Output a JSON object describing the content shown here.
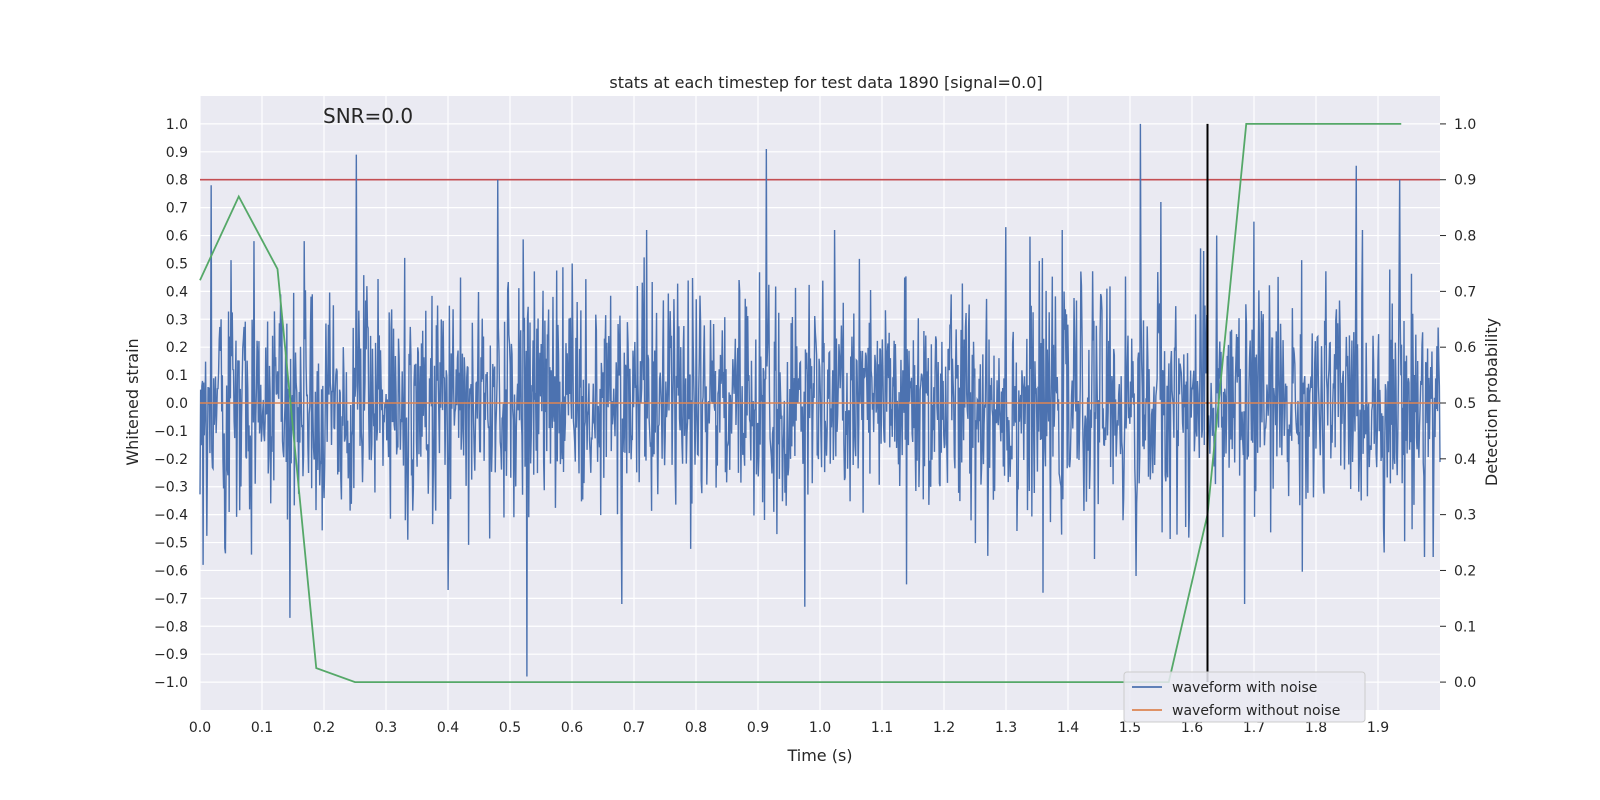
{
  "chart_data": {
    "type": "line",
    "title": "stats at each timestep for test data 1890 [signal=0.0]",
    "annotation": "SNR=0.0",
    "xlabel": "Time (s)",
    "ylabel": "Whitened strain",
    "y2label": "Detection probability",
    "xlim": [
      0.0,
      2.0
    ],
    "ylim": [
      -1.1,
      1.1
    ],
    "y2lim": [
      -0.05,
      1.05
    ],
    "x_ticks": [
      0.0,
      0.1,
      0.2,
      0.3,
      0.4,
      0.5,
      0.6,
      0.7,
      0.8,
      0.9,
      1.0,
      1.1,
      1.2,
      1.3,
      1.4,
      1.5,
      1.6,
      1.7,
      1.8,
      1.9
    ],
    "x_tick_labels": [
      "0.0",
      "0.1",
      "0.2",
      "0.3",
      "0.4",
      "0.5",
      "0.6",
      "0.7",
      "0.8",
      "0.9",
      "1.0",
      "1.1",
      "1.2",
      "1.3",
      "1.4",
      "1.5",
      "1.6",
      "1.7",
      "1.8",
      "1.9"
    ],
    "y_ticks": [
      -1.0,
      -0.9,
      -0.8,
      -0.7,
      -0.6,
      -0.5,
      -0.4,
      -0.3,
      -0.2,
      -0.1,
      0.0,
      0.1,
      0.2,
      0.3,
      0.4,
      0.5,
      0.6,
      0.7,
      0.8,
      0.9,
      1.0
    ],
    "y_tick_labels": [
      "−1.0",
      "−0.9",
      "−0.8",
      "−0.7",
      "−0.6",
      "−0.5",
      "−0.4",
      "−0.3",
      "−0.2",
      "−0.1",
      "0.0",
      "0.1",
      "0.2",
      "0.3",
      "0.4",
      "0.5",
      "0.6",
      "0.7",
      "0.8",
      "0.9",
      "1.0"
    ],
    "y2_ticks": [
      0.0,
      0.1,
      0.2,
      0.3,
      0.4,
      0.5,
      0.6,
      0.7,
      0.8,
      0.9,
      1.0
    ],
    "y2_tick_labels": [
      "0.0",
      "0.1",
      "0.2",
      "0.3",
      "0.4",
      "0.5",
      "0.6",
      "0.7",
      "0.8",
      "0.9",
      "1.0"
    ],
    "grid": true,
    "legend_position": "lower-right",
    "threshold": {
      "y2": 0.9,
      "color": "#c44e52"
    },
    "vline": {
      "x": 1.625,
      "color": "#000000"
    },
    "series": [
      {
        "name": "waveform with noise",
        "color": "#4c72b0",
        "axis": "left",
        "sampling": {
          "start": 0.0,
          "end": 2.0,
          "count": 2000
        },
        "peaks": [
          {
            "x": 0.005,
            "y": -0.58
          },
          {
            "x": 0.018,
            "y": 0.78
          },
          {
            "x": 0.04,
            "y": -0.52
          },
          {
            "x": 0.087,
            "y": 0.58
          },
          {
            "x": 0.145,
            "y": -0.77
          },
          {
            "x": 0.168,
            "y": 0.58
          },
          {
            "x": 0.252,
            "y": 0.89
          },
          {
            "x": 0.33,
            "y": 0.52
          },
          {
            "x": 0.4,
            "y": -0.67
          },
          {
            "x": 0.48,
            "y": 0.8
          },
          {
            "x": 0.527,
            "y": -0.98
          },
          {
            "x": 0.6,
            "y": 0.5
          },
          {
            "x": 0.68,
            "y": -0.72
          },
          {
            "x": 0.72,
            "y": 0.62
          },
          {
            "x": 0.913,
            "y": 0.91
          },
          {
            "x": 0.975,
            "y": -0.73
          },
          {
            "x": 1.14,
            "y": -0.65
          },
          {
            "x": 1.3,
            "y": 0.63
          },
          {
            "x": 1.36,
            "y": -0.68
          },
          {
            "x": 1.51,
            "y": -0.62
          },
          {
            "x": 1.517,
            "y": 1.0
          },
          {
            "x": 1.55,
            "y": 0.72
          },
          {
            "x": 1.64,
            "y": 0.6
          },
          {
            "x": 1.685,
            "y": -0.72
          },
          {
            "x": 1.7,
            "y": 0.65
          },
          {
            "x": 1.865,
            "y": 0.85
          },
          {
            "x": 1.935,
            "y": 0.8
          }
        ]
      },
      {
        "name": "waveform without noise",
        "color": "#dd8452",
        "axis": "left",
        "x": [
          0.0,
          2.0
        ],
        "y": [
          0.0,
          0.0
        ]
      },
      {
        "name": "",
        "color": "#55a868",
        "axis": "right",
        "x": [
          0.0,
          0.0625,
          0.125,
          0.1875,
          0.25,
          0.3125,
          1.5625,
          1.625,
          1.6875,
          1.75,
          1.8125,
          1.875,
          1.9375
        ],
        "y": [
          0.72,
          0.87,
          0.74,
          0.025,
          0.0,
          0.0,
          0.0,
          0.3,
          1.0,
          1.0,
          1.0,
          1.0,
          1.0
        ]
      }
    ]
  }
}
